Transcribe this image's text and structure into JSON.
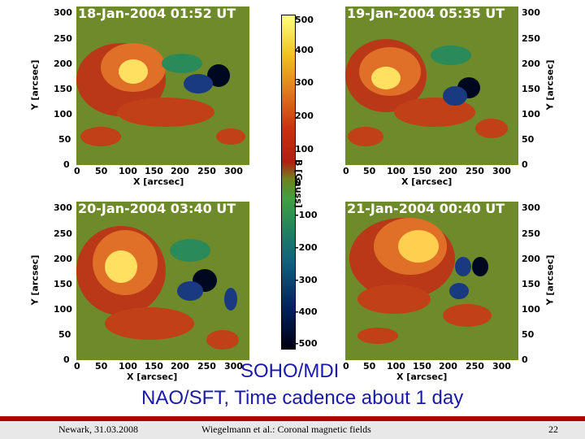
{
  "panels": [
    {
      "timestamp": "18-Jan-2004 01:52 UT"
    },
    {
      "timestamp": "19-Jan-2004 05:35 UT"
    },
    {
      "timestamp": "20-Jan-2004 03:40 UT"
    },
    {
      "timestamp": "21-Jan-2004 00:40 UT"
    }
  ],
  "axes": {
    "ylabel": "Y [arcsec]",
    "xlabel": "X [arcsec]",
    "yticks": [
      "300",
      "250",
      "200",
      "150",
      "100",
      "50",
      "0"
    ],
    "xticks": [
      "0",
      "50",
      "100",
      "150",
      "200",
      "250",
      "300"
    ]
  },
  "colorbar": {
    "label": "B [Gauss]",
    "ticks": [
      "500",
      "400",
      "300",
      "200",
      "100",
      "0",
      "-100",
      "-200",
      "-300",
      "-400",
      "-500"
    ]
  },
  "caption": {
    "line1": "SOHO/MDI",
    "line2": "NAO/SFT, Time cadence about 1 day"
  },
  "footer": {
    "left": "Newark, 31.03.2008",
    "center": "Wiegelmann et al.: Coronal magnetic fields",
    "page": "22"
  },
  "colors": {
    "positive_flux": "#ffff60",
    "negative_flux": "#000820",
    "background_field": "#708020",
    "caption_color": "#1a1aaa",
    "footer_bar": "#b00000"
  }
}
